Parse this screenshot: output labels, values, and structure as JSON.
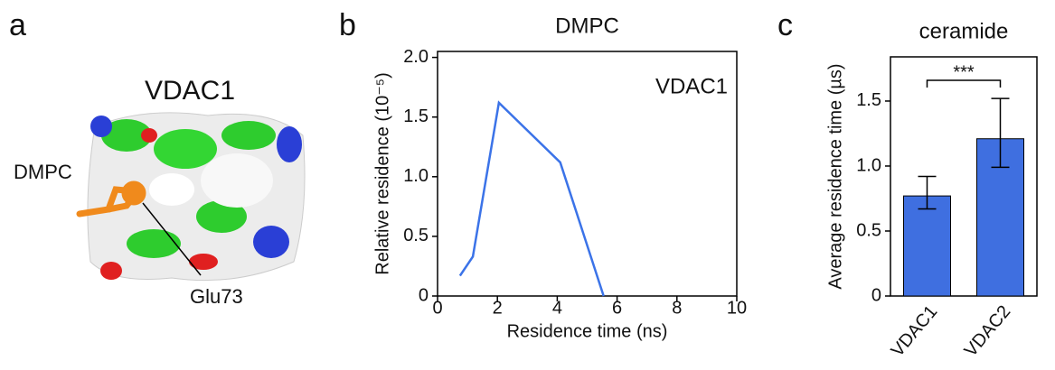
{
  "panels": [
    "a",
    "b",
    "c"
  ],
  "structure": {
    "title": "VDAC1",
    "labels": [
      "DMPC",
      "Glu73"
    ]
  },
  "chart_data": [
    {
      "type": "line",
      "title": "DMPC",
      "annotation": "VDAC1",
      "x_label": "Residence time (ns)",
      "y_label": "Relative residence (10⁻⁵)",
      "series": [
        {
          "name": "VDAC1",
          "color": "#3b73e8",
          "x": [
            0.75,
            1.18,
            2.05,
            4.1,
            5.55
          ],
          "values": [
            0.17,
            0.33,
            1.62,
            1.12,
            0
          ]
        }
      ],
      "xlim": [
        0,
        10
      ],
      "xticks": [
        0,
        2,
        4,
        6,
        8,
        10
      ],
      "ylim": [
        0,
        2.05
      ],
      "yticks": [
        0,
        0.5,
        {
          "value": 1,
          "label": "1.0"
        },
        1.5,
        {
          "value": 2,
          "label": "2.0"
        }
      ]
    },
    {
      "type": "bar",
      "title": "ceramide",
      "y_label": "Average residence time (µs)",
      "categories": [
        "VDAC1",
        "VDAC2"
      ],
      "values": [
        0.77,
        1.21
      ],
      "error_low": [
        0.67,
        0.99
      ],
      "error_high": [
        0.92,
        1.52
      ],
      "color": "#3f6fe0",
      "significance": "***",
      "ylim": [
        0,
        1.84
      ],
      "yticks": [
        0,
        0.5,
        {
          "value": 1,
          "label": "1.0"
        },
        1.5
      ]
    }
  ]
}
